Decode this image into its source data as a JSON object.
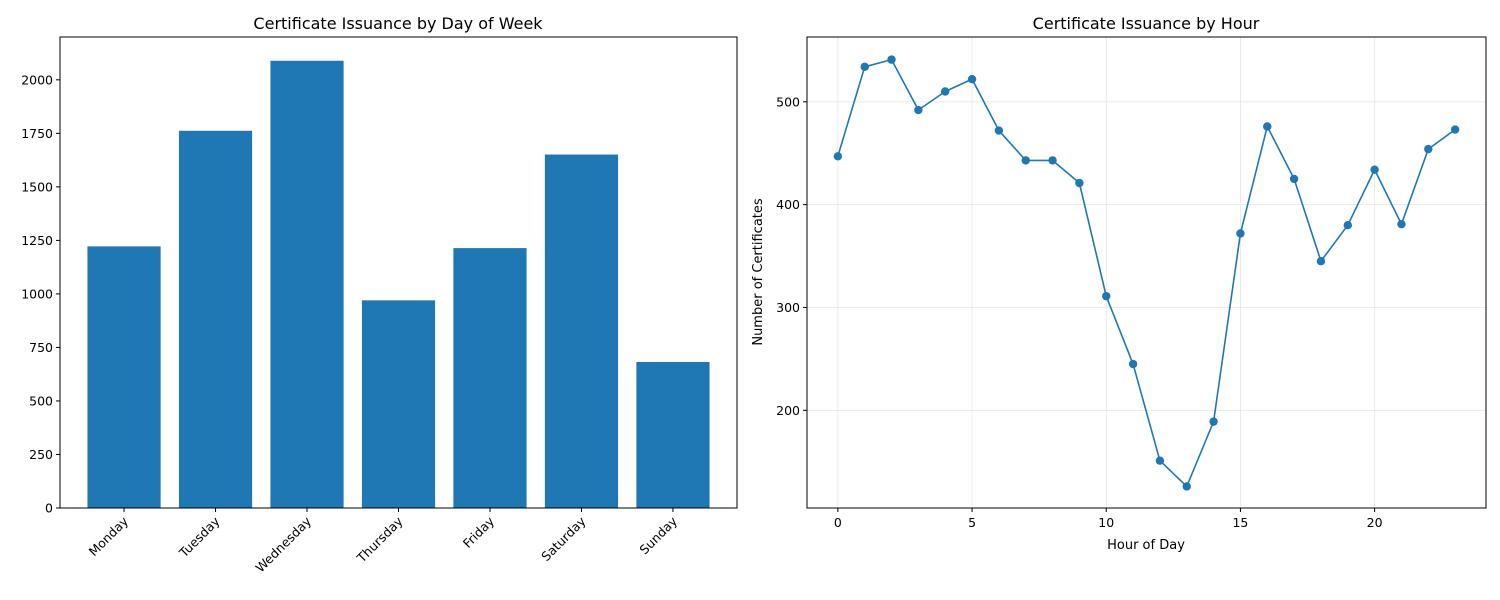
{
  "chart_data": [
    {
      "type": "bar",
      "title": "Certificate Issuance by Day of Week",
      "xlabel": "",
      "ylabel": "",
      "categories": [
        "Monday",
        "Tuesday",
        "Wednesday",
        "Thursday",
        "Friday",
        "Saturday",
        "Sunday"
      ],
      "values": [
        1222,
        1762,
        2089,
        970,
        1214,
        1651,
        682
      ],
      "ylim": [
        0,
        2200
      ],
      "yticks": [
        0,
        250,
        500,
        750,
        1000,
        1250,
        1500,
        1750,
        2000
      ],
      "grid": false,
      "color": "#1f77b4"
    },
    {
      "type": "line",
      "title": "Certificate Issuance by Hour",
      "xlabel": "Hour of Day",
      "ylabel": "Number of Certificates",
      "x": [
        0,
        1,
        2,
        3,
        4,
        5,
        6,
        7,
        8,
        9,
        10,
        11,
        12,
        13,
        14,
        15,
        16,
        17,
        18,
        19,
        20,
        21,
        22,
        23
      ],
      "values": [
        447,
        534,
        541,
        492,
        510,
        522,
        472,
        443,
        443,
        421,
        311,
        245,
        151,
        126,
        189,
        372,
        476,
        425,
        345,
        380,
        434,
        381,
        454,
        473
      ],
      "xlim": [
        -1.15,
        24.15
      ],
      "ylim": [
        105,
        563
      ],
      "xticks": [
        0,
        5,
        10,
        15,
        20
      ],
      "yticks": [
        200,
        300,
        400,
        500
      ],
      "grid": true,
      "marker": "circle",
      "color": "#1f77b4"
    }
  ]
}
